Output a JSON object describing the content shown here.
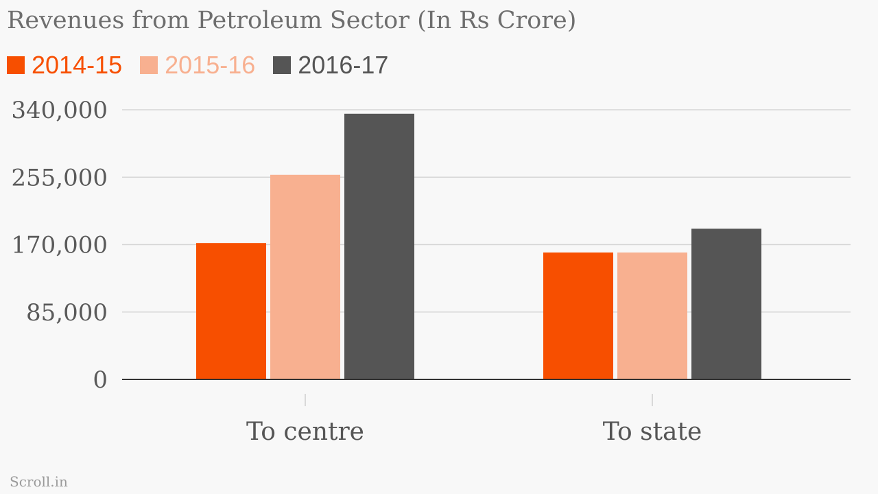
{
  "chart_data": {
    "type": "bar",
    "title": "Revenues from Petroleum Sector (In Rs Crore)",
    "categories": [
      "To centre",
      "To state"
    ],
    "series": [
      {
        "name": "2014-15",
        "values": [
          172000,
          160000
        ],
        "color": "#f74f00"
      },
      {
        "name": "2015-16",
        "values": [
          258000,
          160000
        ],
        "color": "#f8b090"
      },
      {
        "name": "2016-17",
        "values": [
          335000,
          190000
        ],
        "color": "#555555"
      }
    ],
    "y_ticks": [
      0,
      85000,
      170000,
      255000,
      340000
    ],
    "y_tick_labels": [
      "0",
      "85,000",
      "170,000",
      "255,000",
      "340,000"
    ],
    "ylim": [
      0,
      340000
    ],
    "xlabel": "",
    "ylabel": "",
    "grid": true,
    "legend_placement": "top-left"
  },
  "source": "Scroll.in"
}
